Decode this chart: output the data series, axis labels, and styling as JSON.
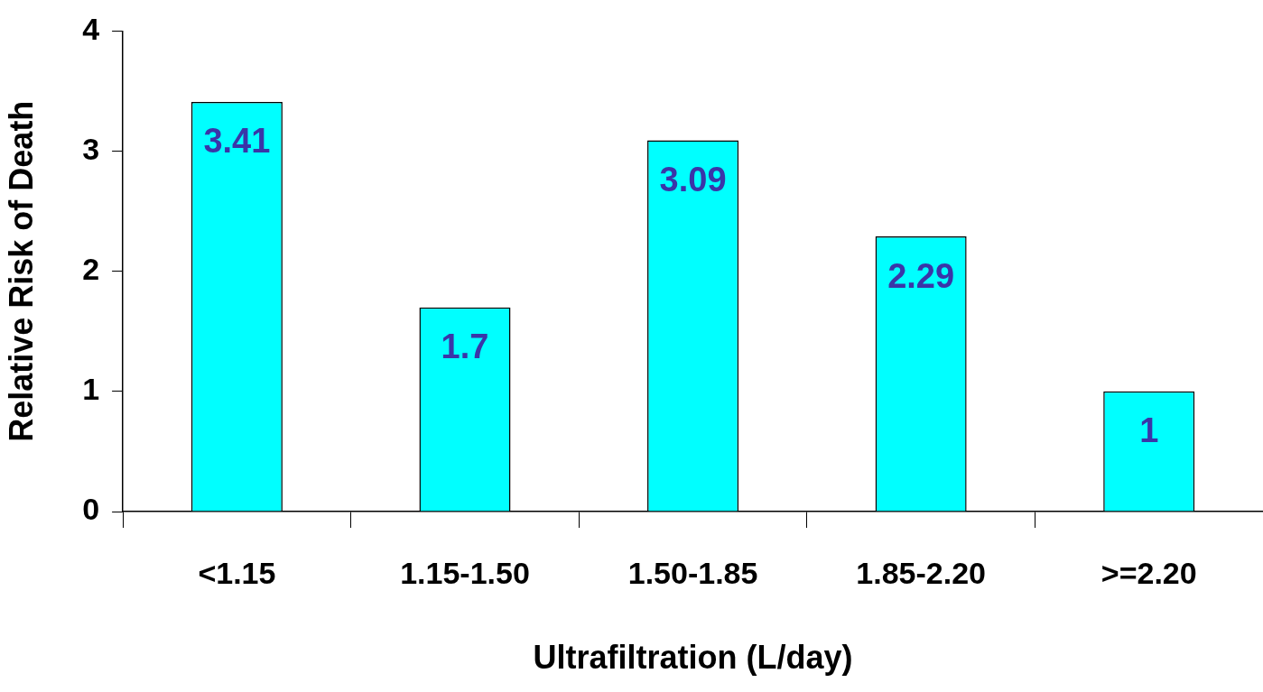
{
  "chart_data": {
    "type": "bar",
    "xlabel": "Ultrafiltration (L/day)",
    "ylabel": "Relative Risk of Death",
    "categories": [
      "<1.15",
      "1.15-1.50",
      "1.50-1.85",
      "1.85-2.20",
      ">=2.20"
    ],
    "values": [
      3.41,
      1.7,
      3.09,
      2.29,
      1
    ],
    "color": "#00ffff",
    "ylim": [
      0,
      4
    ],
    "yticks": [
      0,
      1,
      2,
      3,
      4
    ],
    "grid": false,
    "legend": false,
    "data_labels": true
  }
}
